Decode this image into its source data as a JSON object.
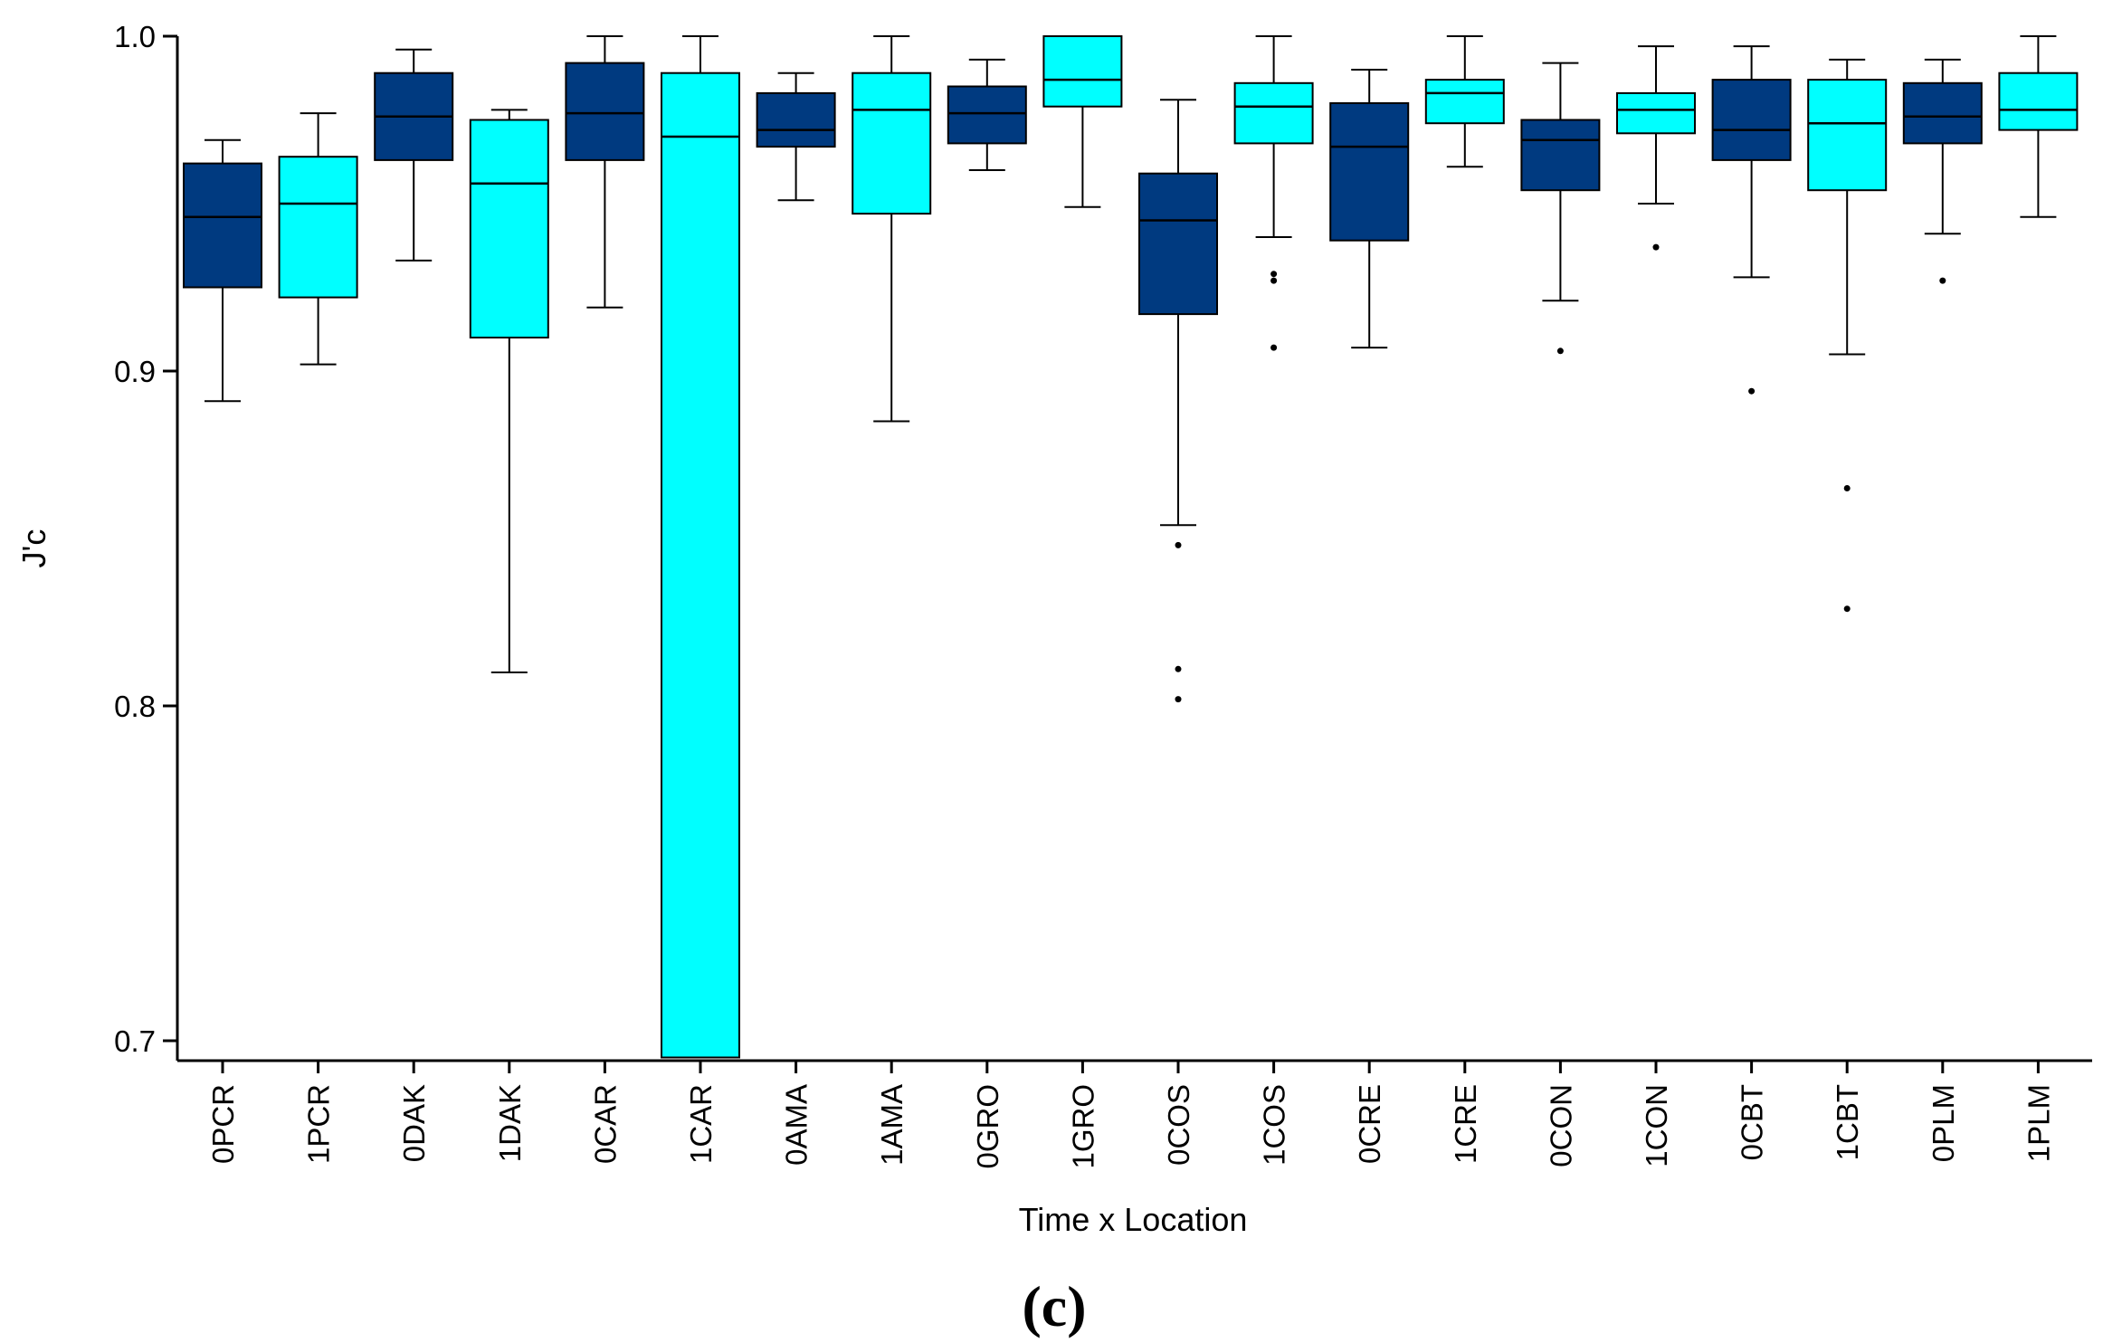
{
  "chart_data": {
    "type": "box",
    "title": "",
    "xlabel": "Time x Location",
    "ylabel": "J'c",
    "panel_label": "(c)",
    "ylim": [
      0.695,
      1.0
    ],
    "yticks": [
      "0.7",
      "0.8",
      "0.9",
      "1.0"
    ],
    "grid": false,
    "legend": "none",
    "colors": {
      "dark": "#003a80",
      "light": "#00ffff"
    },
    "categories": [
      "0PCR",
      "1PCR",
      "0DAK",
      "1DAK",
      "0CAR",
      "1CAR",
      "0AMA",
      "1AMA",
      "0GRO",
      "1GRO",
      "0COS",
      "1COS",
      "0CRE",
      "1CRE",
      "0CON",
      "1CON",
      "0CBT",
      "1CBT",
      "0PLM",
      "1PLM"
    ],
    "boxes": [
      {
        "label": "0PCR",
        "color": "dark",
        "whisker_low": 0.891,
        "q1": 0.925,
        "median": 0.946,
        "q3": 0.962,
        "whisker_high": 0.969,
        "outliers": []
      },
      {
        "label": "1PCR",
        "color": "light",
        "whisker_low": 0.902,
        "q1": 0.922,
        "median": 0.95,
        "q3": 0.964,
        "whisker_high": 0.977,
        "outliers": []
      },
      {
        "label": "0DAK",
        "color": "dark",
        "whisker_low": 0.933,
        "q1": 0.963,
        "median": 0.976,
        "q3": 0.989,
        "whisker_high": 0.996,
        "outliers": []
      },
      {
        "label": "1DAK",
        "color": "light",
        "whisker_low": 0.81,
        "q1": 0.91,
        "median": 0.956,
        "q3": 0.975,
        "whisker_high": 0.978,
        "outliers": []
      },
      {
        "label": "0CAR",
        "color": "dark",
        "whisker_low": 0.919,
        "q1": 0.963,
        "median": 0.977,
        "q3": 0.992,
        "whisker_high": 1.0,
        "outliers": []
      },
      {
        "label": "1CAR",
        "color": "light",
        "whisker_low": 0.695,
        "q1": 0.695,
        "median": 0.97,
        "q3": 0.989,
        "whisker_high": 1.0,
        "outliers": []
      },
      {
        "label": "0AMA",
        "color": "dark",
        "whisker_low": 0.951,
        "q1": 0.967,
        "median": 0.972,
        "q3": 0.983,
        "whisker_high": 0.989,
        "outliers": []
      },
      {
        "label": "1AMA",
        "color": "light",
        "whisker_low": 0.885,
        "q1": 0.947,
        "median": 0.978,
        "q3": 0.989,
        "whisker_high": 1.0,
        "outliers": []
      },
      {
        "label": "0GRO",
        "color": "dark",
        "whisker_low": 0.96,
        "q1": 0.968,
        "median": 0.977,
        "q3": 0.985,
        "whisker_high": 0.993,
        "outliers": []
      },
      {
        "label": "1GRO",
        "color": "light",
        "whisker_low": 0.949,
        "q1": 0.979,
        "median": 0.987,
        "q3": 1.0,
        "whisker_high": 1.0,
        "outliers": []
      },
      {
        "label": "0COS",
        "color": "dark",
        "whisker_low": 0.854,
        "q1": 0.917,
        "median": 0.945,
        "q3": 0.959,
        "whisker_high": 0.981,
        "outliers": [
          0.848,
          0.811,
          0.802
        ]
      },
      {
        "label": "1COS",
        "color": "light",
        "whisker_low": 0.94,
        "q1": 0.968,
        "median": 0.979,
        "q3": 0.986,
        "whisker_high": 1.0,
        "outliers": [
          0.929,
          0.927,
          0.907
        ]
      },
      {
        "label": "0CRE",
        "color": "dark",
        "whisker_low": 0.907,
        "q1": 0.939,
        "median": 0.967,
        "q3": 0.98,
        "whisker_high": 0.99,
        "outliers": []
      },
      {
        "label": "1CRE",
        "color": "light",
        "whisker_low": 0.961,
        "q1": 0.974,
        "median": 0.983,
        "q3": 0.987,
        "whisker_high": 1.0,
        "outliers": []
      },
      {
        "label": "0CON",
        "color": "dark",
        "whisker_low": 0.921,
        "q1": 0.954,
        "median": 0.969,
        "q3": 0.975,
        "whisker_high": 0.992,
        "outliers": [
          0.906
        ]
      },
      {
        "label": "1CON",
        "color": "light",
        "whisker_low": 0.95,
        "q1": 0.971,
        "median": 0.978,
        "q3": 0.983,
        "whisker_high": 0.997,
        "outliers": [
          0.937
        ]
      },
      {
        "label": "0CBT",
        "color": "dark",
        "whisker_low": 0.928,
        "q1": 0.963,
        "median": 0.972,
        "q3": 0.987,
        "whisker_high": 0.997,
        "outliers": [
          0.894
        ]
      },
      {
        "label": "1CBT",
        "color": "light",
        "whisker_low": 0.905,
        "q1": 0.954,
        "median": 0.974,
        "q3": 0.987,
        "whisker_high": 0.993,
        "outliers": [
          0.865,
          0.829
        ]
      },
      {
        "label": "0PLM",
        "color": "dark",
        "whisker_low": 0.941,
        "q1": 0.968,
        "median": 0.976,
        "q3": 0.986,
        "whisker_high": 0.993,
        "outliers": [
          0.927
        ]
      },
      {
        "label": "1PLM",
        "color": "light",
        "whisker_low": 0.946,
        "q1": 0.972,
        "median": 0.978,
        "q3": 0.989,
        "whisker_high": 1.0,
        "outliers": []
      }
    ]
  }
}
